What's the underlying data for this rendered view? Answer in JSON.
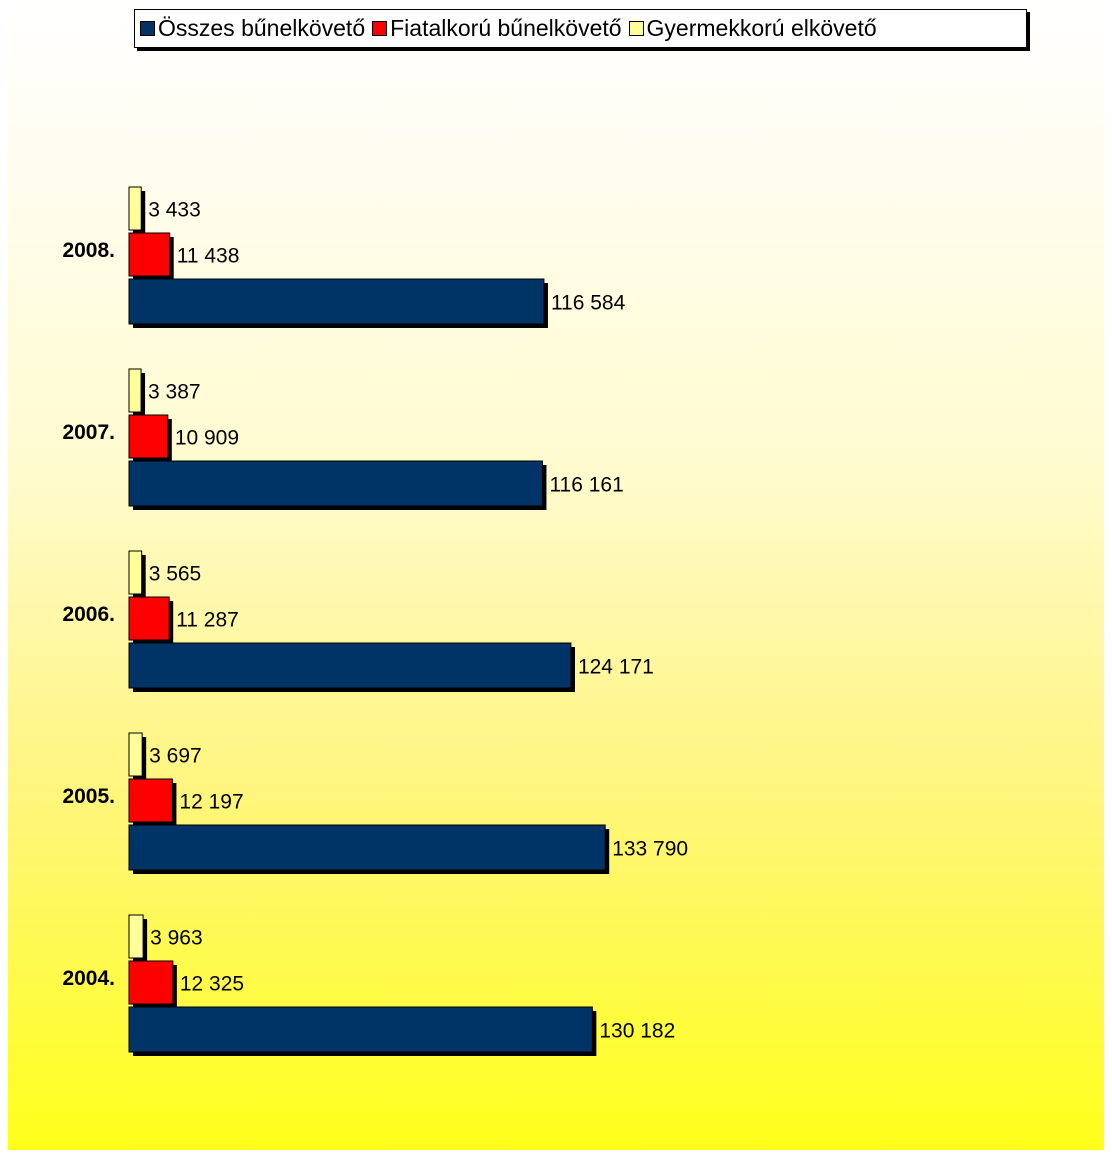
{
  "chart_data": {
    "type": "bar",
    "orientation": "horizontal",
    "categories": [
      "2008.",
      "2007.",
      "2006.",
      "2005.",
      "2004."
    ],
    "series": [
      {
        "name": "Gyermekkorú elkövető",
        "color": "#ffff99",
        "values": [
          3433,
          3387,
          3565,
          3697,
          3963
        ],
        "labels": [
          "3 433",
          "3 387",
          "3 565",
          "3 697",
          "3 963"
        ]
      },
      {
        "name": "Fiatalkorú bűnelkövető",
        "color": "#ff0000",
        "values": [
          11438,
          10909,
          11287,
          12197,
          12325
        ],
        "labels": [
          "11 438",
          "10 909",
          "11 287",
          "12 197",
          "12 325"
        ]
      },
      {
        "name": "Összes bűnelkövető",
        "color": "#003366",
        "values": [
          116584,
          116161,
          124171,
          133790,
          130182
        ],
        "labels": [
          "116 584",
          "116 161",
          "124 171",
          "133 790",
          "130 182"
        ]
      }
    ],
    "legend_order": [
      "Összes bűnelkövető",
      "Fiatalkorú bűnelkövető",
      "Gyermekkorú elkövető"
    ],
    "legend_position": "top",
    "xlim": [
      0,
      270000
    ],
    "grid": false
  }
}
